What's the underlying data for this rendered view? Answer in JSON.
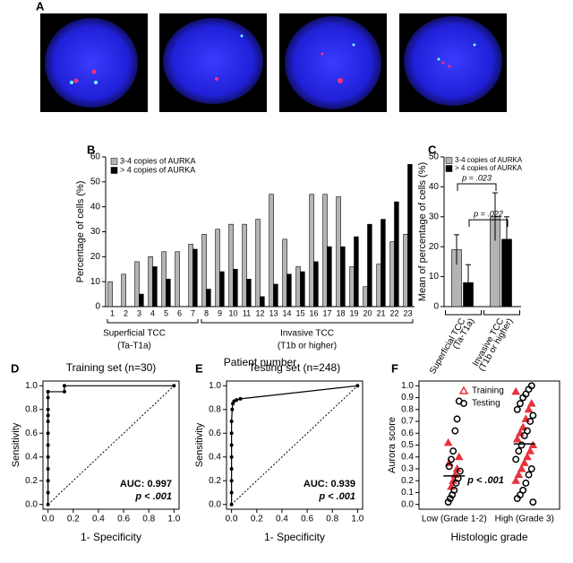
{
  "panel_a": {
    "label": "A"
  },
  "chart_data": [
    {
      "type": "bar",
      "panel": "B",
      "xlabel": "Patient number",
      "ylabel": "Percentage of cells (%)",
      "categories": [
        "1",
        "2",
        "3",
        "4",
        "5",
        "6",
        "7",
        "8",
        "9",
        "10",
        "11",
        "12",
        "13",
        "14",
        "15",
        "16",
        "17",
        "18",
        "19",
        "20",
        "21",
        "22",
        "23"
      ],
      "series": [
        {
          "name": "3-4 copies of AURKA",
          "color": "#b4b4b4",
          "values": [
            10,
            13,
            18,
            20,
            22,
            22,
            25,
            29,
            31,
            33,
            33,
            35,
            45,
            27,
            16,
            45,
            45,
            44,
            16,
            8,
            17,
            26,
            29
          ]
        },
        {
          "name": "> 4 copies of AURKA",
          "color": "#000000",
          "values": [
            0,
            0,
            5,
            16,
            11,
            0,
            23,
            7,
            14,
            15,
            11,
            4,
            9,
            13,
            14,
            18,
            24,
            24,
            28,
            33,
            35,
            42,
            57
          ]
        }
      ],
      "groups": [
        {
          "label": "Superficial TCC",
          "sublabel": "(Ta-T1a)",
          "span": [
            "1",
            "7"
          ]
        },
        {
          "label": "Invasive TCC",
          "sublabel": "(T1b or higher)",
          "span": [
            "8",
            "23"
          ]
        }
      ],
      "ylim": [
        0,
        60
      ],
      "yticks": [
        0,
        10,
        20,
        30,
        40,
        50,
        60
      ]
    },
    {
      "type": "bar",
      "panel": "C",
      "ylabel": "Mean of percentage of cells (%)",
      "categories": [
        "Superficial TCC",
        "Invasive TCC"
      ],
      "category_sublabels": [
        "(Ta-T1a)",
        "(T1b or higher)"
      ],
      "series": [
        {
          "name": "3-4 copies of AURKA",
          "color": "#b4b4b4",
          "values": [
            19,
            30
          ],
          "errors": [
            5,
            8
          ]
        },
        {
          "name": "> 4 copies of AURKA",
          "color": "#000000",
          "values": [
            8,
            22.5
          ],
          "errors": [
            6,
            7.5
          ]
        }
      ],
      "annotations": [
        "p = .022",
        "p = .023"
      ],
      "ylim": [
        0,
        50
      ],
      "yticks": [
        0,
        10,
        20,
        30,
        40,
        50
      ]
    },
    {
      "type": "line",
      "panel": "D",
      "title": "Training set (n=30)",
      "xlabel": "1- Specificity",
      "ylabel": "Sensitivity",
      "x": [
        0,
        0,
        0,
        0,
        0,
        0,
        0,
        0,
        0,
        0,
        0,
        0,
        0.13,
        0.13,
        1
      ],
      "y": [
        0,
        0.1,
        0.2,
        0.3,
        0.4,
        0.5,
        0.6,
        0.7,
        0.75,
        0.8,
        0.9,
        0.95,
        0.95,
        1,
        1
      ],
      "annotations": [
        "AUC: 0.997",
        "p < .001"
      ],
      "xlim": [
        -0.04,
        1.04
      ],
      "ylim": [
        -0.04,
        1.04
      ],
      "xticks": [
        {
          "value": 0,
          "label": "0.0"
        },
        0.2,
        0.4,
        0.6,
        0.8,
        {
          "value": 1,
          "label": "1.0"
        }
      ],
      "yticks": [
        {
          "value": 0,
          "label": "0.0"
        },
        0.2,
        0.4,
        0.6,
        0.8,
        {
          "value": 1,
          "label": "1.0"
        }
      ]
    },
    {
      "type": "line",
      "panel": "E",
      "title": "Testing set (n=248)",
      "xlabel": "1- Specificity",
      "ylabel": "Sensitivity",
      "x": [
        0,
        0,
        0,
        0,
        0,
        0,
        0,
        0,
        0.005,
        0.01,
        0.02,
        0.04,
        0.07,
        1
      ],
      "y": [
        0,
        0.1,
        0.2,
        0.3,
        0.4,
        0.5,
        0.6,
        0.7,
        0.8,
        0.85,
        0.87,
        0.88,
        0.89,
        1
      ],
      "annotations": [
        "AUC: 0.939",
        "p < .001"
      ],
      "xlim": [
        -0.04,
        1.04
      ],
      "ylim": [
        -0.04,
        1.04
      ],
      "xticks": [
        {
          "value": 0,
          "label": "0.0"
        },
        0.2,
        0.4,
        0.6,
        0.8,
        {
          "value": 1,
          "label": "1.0"
        }
      ],
      "yticks": [
        {
          "value": 0,
          "label": "0.0"
        },
        0.2,
        0.4,
        0.6,
        0.8,
        {
          "value": 1,
          "label": "1.0"
        }
      ]
    },
    {
      "type": "scatter",
      "panel": "F",
      "xlabel": "Histologic grade",
      "ylabel": "Aurora score",
      "categories": [
        "Low (Grade 1-2)",
        "High (Grade 3)"
      ],
      "series": [
        {
          "name": "Training",
          "color": "#e8323c",
          "values": [
            [
              0.52,
              0.4,
              0.3,
              0.25,
              0.2,
              0.15,
              0.35
            ],
            [
              0.95,
              0.85,
              0.8,
              0.72,
              0.65,
              0.6,
              0.55,
              0.5,
              0.45,
              0.4,
              0.35,
              0.3,
              0.25,
              0.2
            ]
          ]
        },
        {
          "name": "Testing",
          "color": "#000000",
          "values": [
            [
              0.87,
              0.72,
              0.62,
              0.45,
              0.38,
              0.32,
              0.28,
              0.22,
              0.18,
              0.12,
              0.08,
              0.05,
              0.02
            ],
            [
              1,
              0.97,
              0.93,
              0.9,
              0.85,
              0.8,
              0.75,
              0.7,
              0.62,
              0.58,
              0.5,
              0.45,
              0.38,
              0.3,
              0.25,
              0.18,
              0.12,
              0.08,
              0.05,
              0.02
            ]
          ]
        }
      ],
      "means": [
        0.24,
        0.51
      ],
      "annotations": [
        "p < .001"
      ],
      "ylim": [
        -0.04,
        1.04
      ],
      "yticks": [
        {
          "value": 0,
          "label": "0.0"
        },
        0.1,
        0.2,
        0.3,
        0.4,
        0.5,
        0.6,
        0.7,
        0.8,
        0.9,
        {
          "value": 1,
          "label": "1.0"
        }
      ]
    }
  ]
}
